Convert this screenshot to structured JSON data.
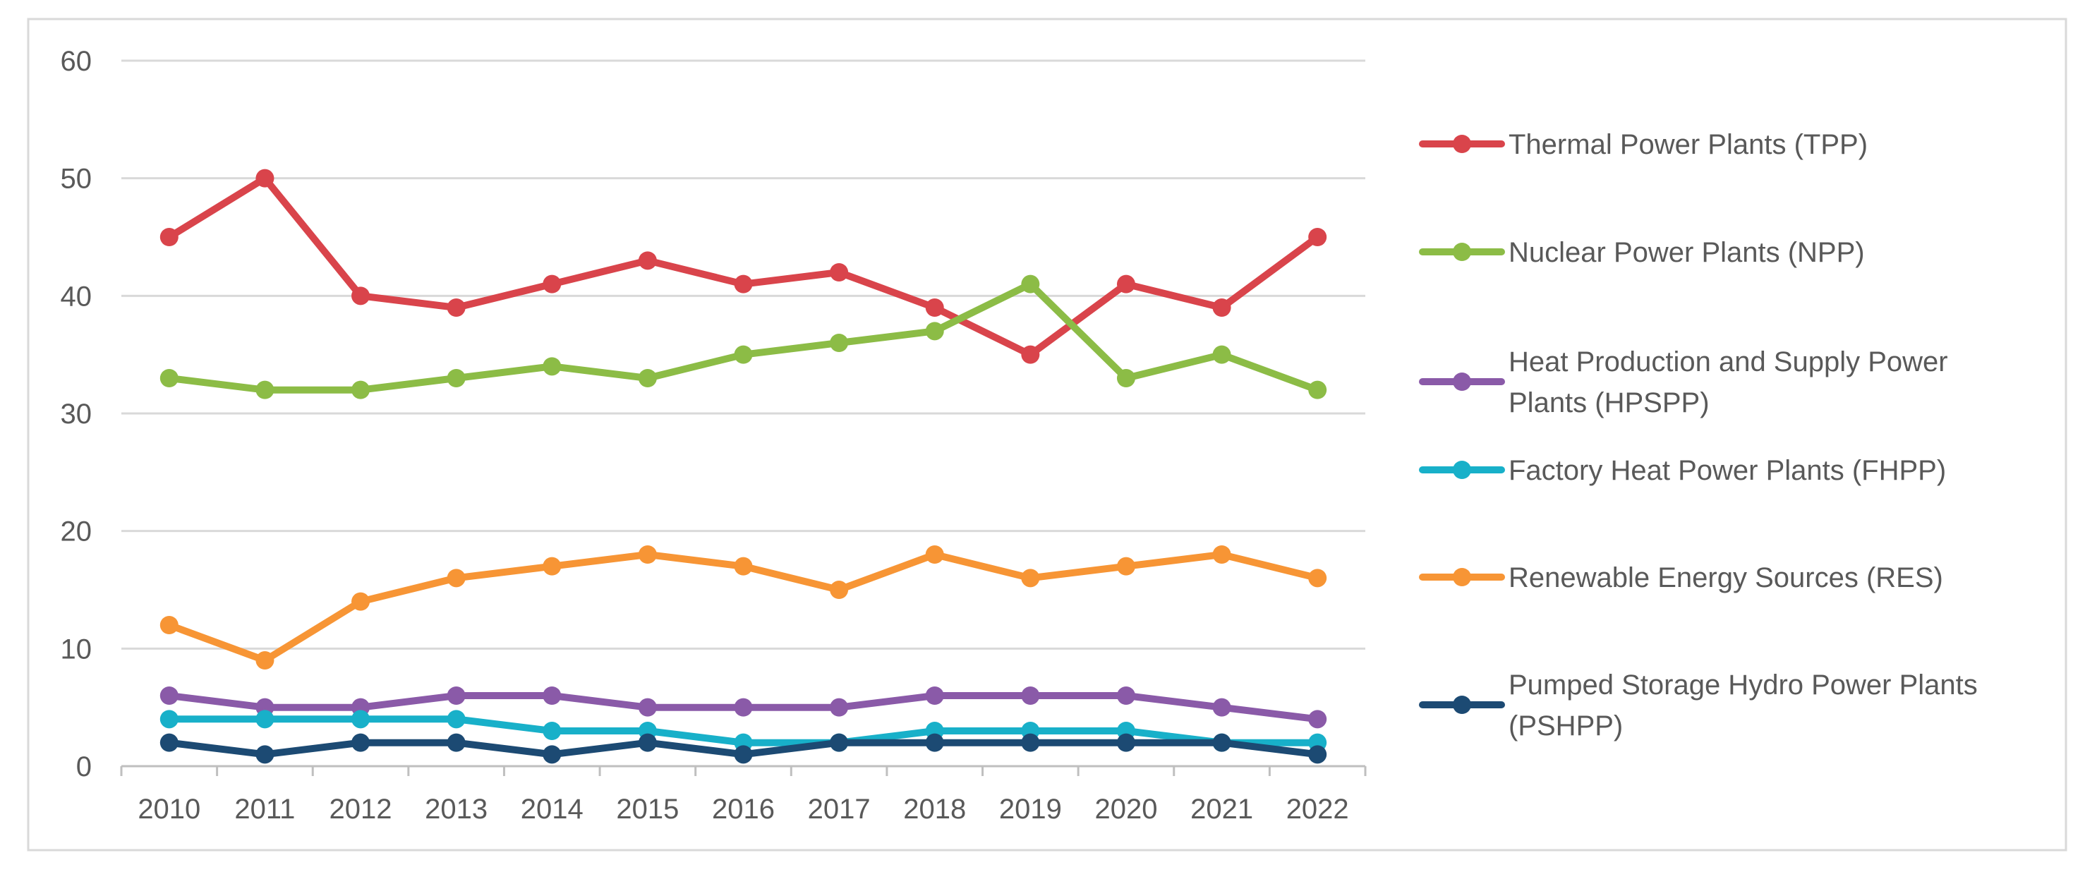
{
  "chart_data": {
    "type": "line",
    "title": "",
    "xlabel": "",
    "ylabel": "",
    "categories": [
      "2010",
      "2011",
      "2012",
      "2013",
      "2014",
      "2015",
      "2016",
      "2017",
      "2018",
      "2019",
      "2020",
      "2021",
      "2022"
    ],
    "ylim": [
      0,
      60
    ],
    "yticks": [
      0,
      10,
      20,
      30,
      40,
      50,
      60
    ],
    "grid": true,
    "legend_position": "right",
    "series": [
      {
        "name": "Thermal Power Plants (TPP)",
        "color": "#d9444b",
        "values": [
          45,
          50,
          40,
          39,
          41,
          43,
          41,
          42,
          39,
          35,
          41,
          39,
          45
        ]
      },
      {
        "name": "Nuclear Power Plants (NPP)",
        "color": "#8cbc46",
        "values": [
          33,
          32,
          32,
          33,
          34,
          33,
          35,
          36,
          37,
          41,
          33,
          35,
          32
        ]
      },
      {
        "name": "Heat Production and Supply Power Plants (HPSPP)",
        "color": "#8a5aa8",
        "values": [
          6,
          5,
          5,
          6,
          6,
          5,
          5,
          5,
          6,
          6,
          6,
          5,
          4
        ]
      },
      {
        "name": "Factory Heat Power Plants (FHPP)",
        "color": "#18b0c9",
        "values": [
          4,
          4,
          4,
          4,
          3,
          3,
          2,
          2,
          3,
          3,
          3,
          2,
          2
        ]
      },
      {
        "name": "Renewable Energy Sources (RES)",
        "color": "#f79535",
        "values": [
          12,
          9,
          14,
          16,
          17,
          18,
          17,
          15,
          18,
          16,
          17,
          18,
          16
        ]
      },
      {
        "name": "Pumped Storage Hydro Power Plants (PSHPP)",
        "color": "#1c4a73",
        "values": [
          2,
          1,
          2,
          2,
          1,
          2,
          1,
          2,
          2,
          2,
          2,
          2,
          1
        ]
      }
    ],
    "legend_lines": [
      [
        "Thermal Power Plants (TPP)"
      ],
      [
        "Nuclear Power Plants (NPP)"
      ],
      [
        "Heat Production and Supply Power",
        "Plants (HPSPP)"
      ],
      [
        "Factory Heat Power Plants (FHPP)"
      ],
      [
        "Renewable Energy Sources (RES)"
      ],
      [
        "Pumped Storage Hydro Power Plants",
        "(PSHPP)"
      ]
    ]
  }
}
